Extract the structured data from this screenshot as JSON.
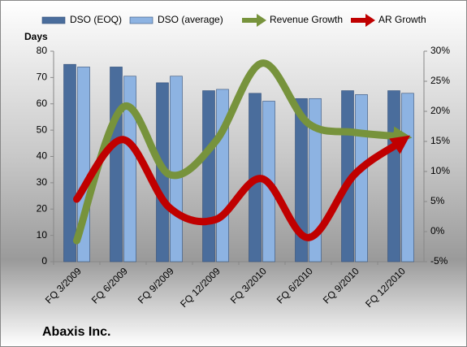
{
  "chart_data": {
    "type": "bar-line",
    "title": "Abaxis Inc.",
    "y_label": "Days",
    "categories": [
      "FQ 3/2009",
      "FQ 6/2009",
      "FQ 9/2009",
      "FQ 12/2009",
      "FQ 3/2010",
      "FQ 6/2010",
      "FQ 9/2010",
      "FQ 12/2010"
    ],
    "series": [
      {
        "name": "DSO (EOQ)",
        "type": "bar",
        "color": "#4a6d9c",
        "values": [
          75,
          74,
          68,
          65,
          64,
          62,
          65,
          65
        ]
      },
      {
        "name": "DSO (average)",
        "type": "bar",
        "color": "#8db3e2",
        "values": [
          74,
          70.5,
          70.5,
          65.5,
          61,
          62,
          63.5,
          64
        ]
      },
      {
        "name": "Revenue Growth",
        "type": "line",
        "axis": "y2",
        "color": "#77933c",
        "values": [
          -1.5,
          20.7,
          9.5,
          15,
          28,
          18,
          16.5,
          15.8
        ]
      },
      {
        "name": "AR Growth",
        "type": "line",
        "axis": "y2",
        "color": "#c00000",
        "values": [
          5.4,
          15.3,
          4,
          2,
          8.8,
          -1,
          9.5,
          14.9
        ]
      }
    ],
    "ylim": [
      0,
      80
    ],
    "yticks": [
      0,
      10,
      20,
      30,
      40,
      50,
      60,
      70,
      80
    ],
    "y2lim": [
      -5,
      30
    ],
    "y2ticks": [
      {
        "value": -5,
        "label": "-5%"
      },
      {
        "value": 0,
        "label": "0%"
      },
      {
        "value": 5,
        "label": "5%"
      },
      {
        "value": 10,
        "label": "10%"
      },
      {
        "value": 15,
        "label": "15%"
      },
      {
        "value": 20,
        "label": "20%"
      },
      {
        "value": 25,
        "label": "25%"
      },
      {
        "value": 30,
        "label": "30%"
      }
    ]
  }
}
